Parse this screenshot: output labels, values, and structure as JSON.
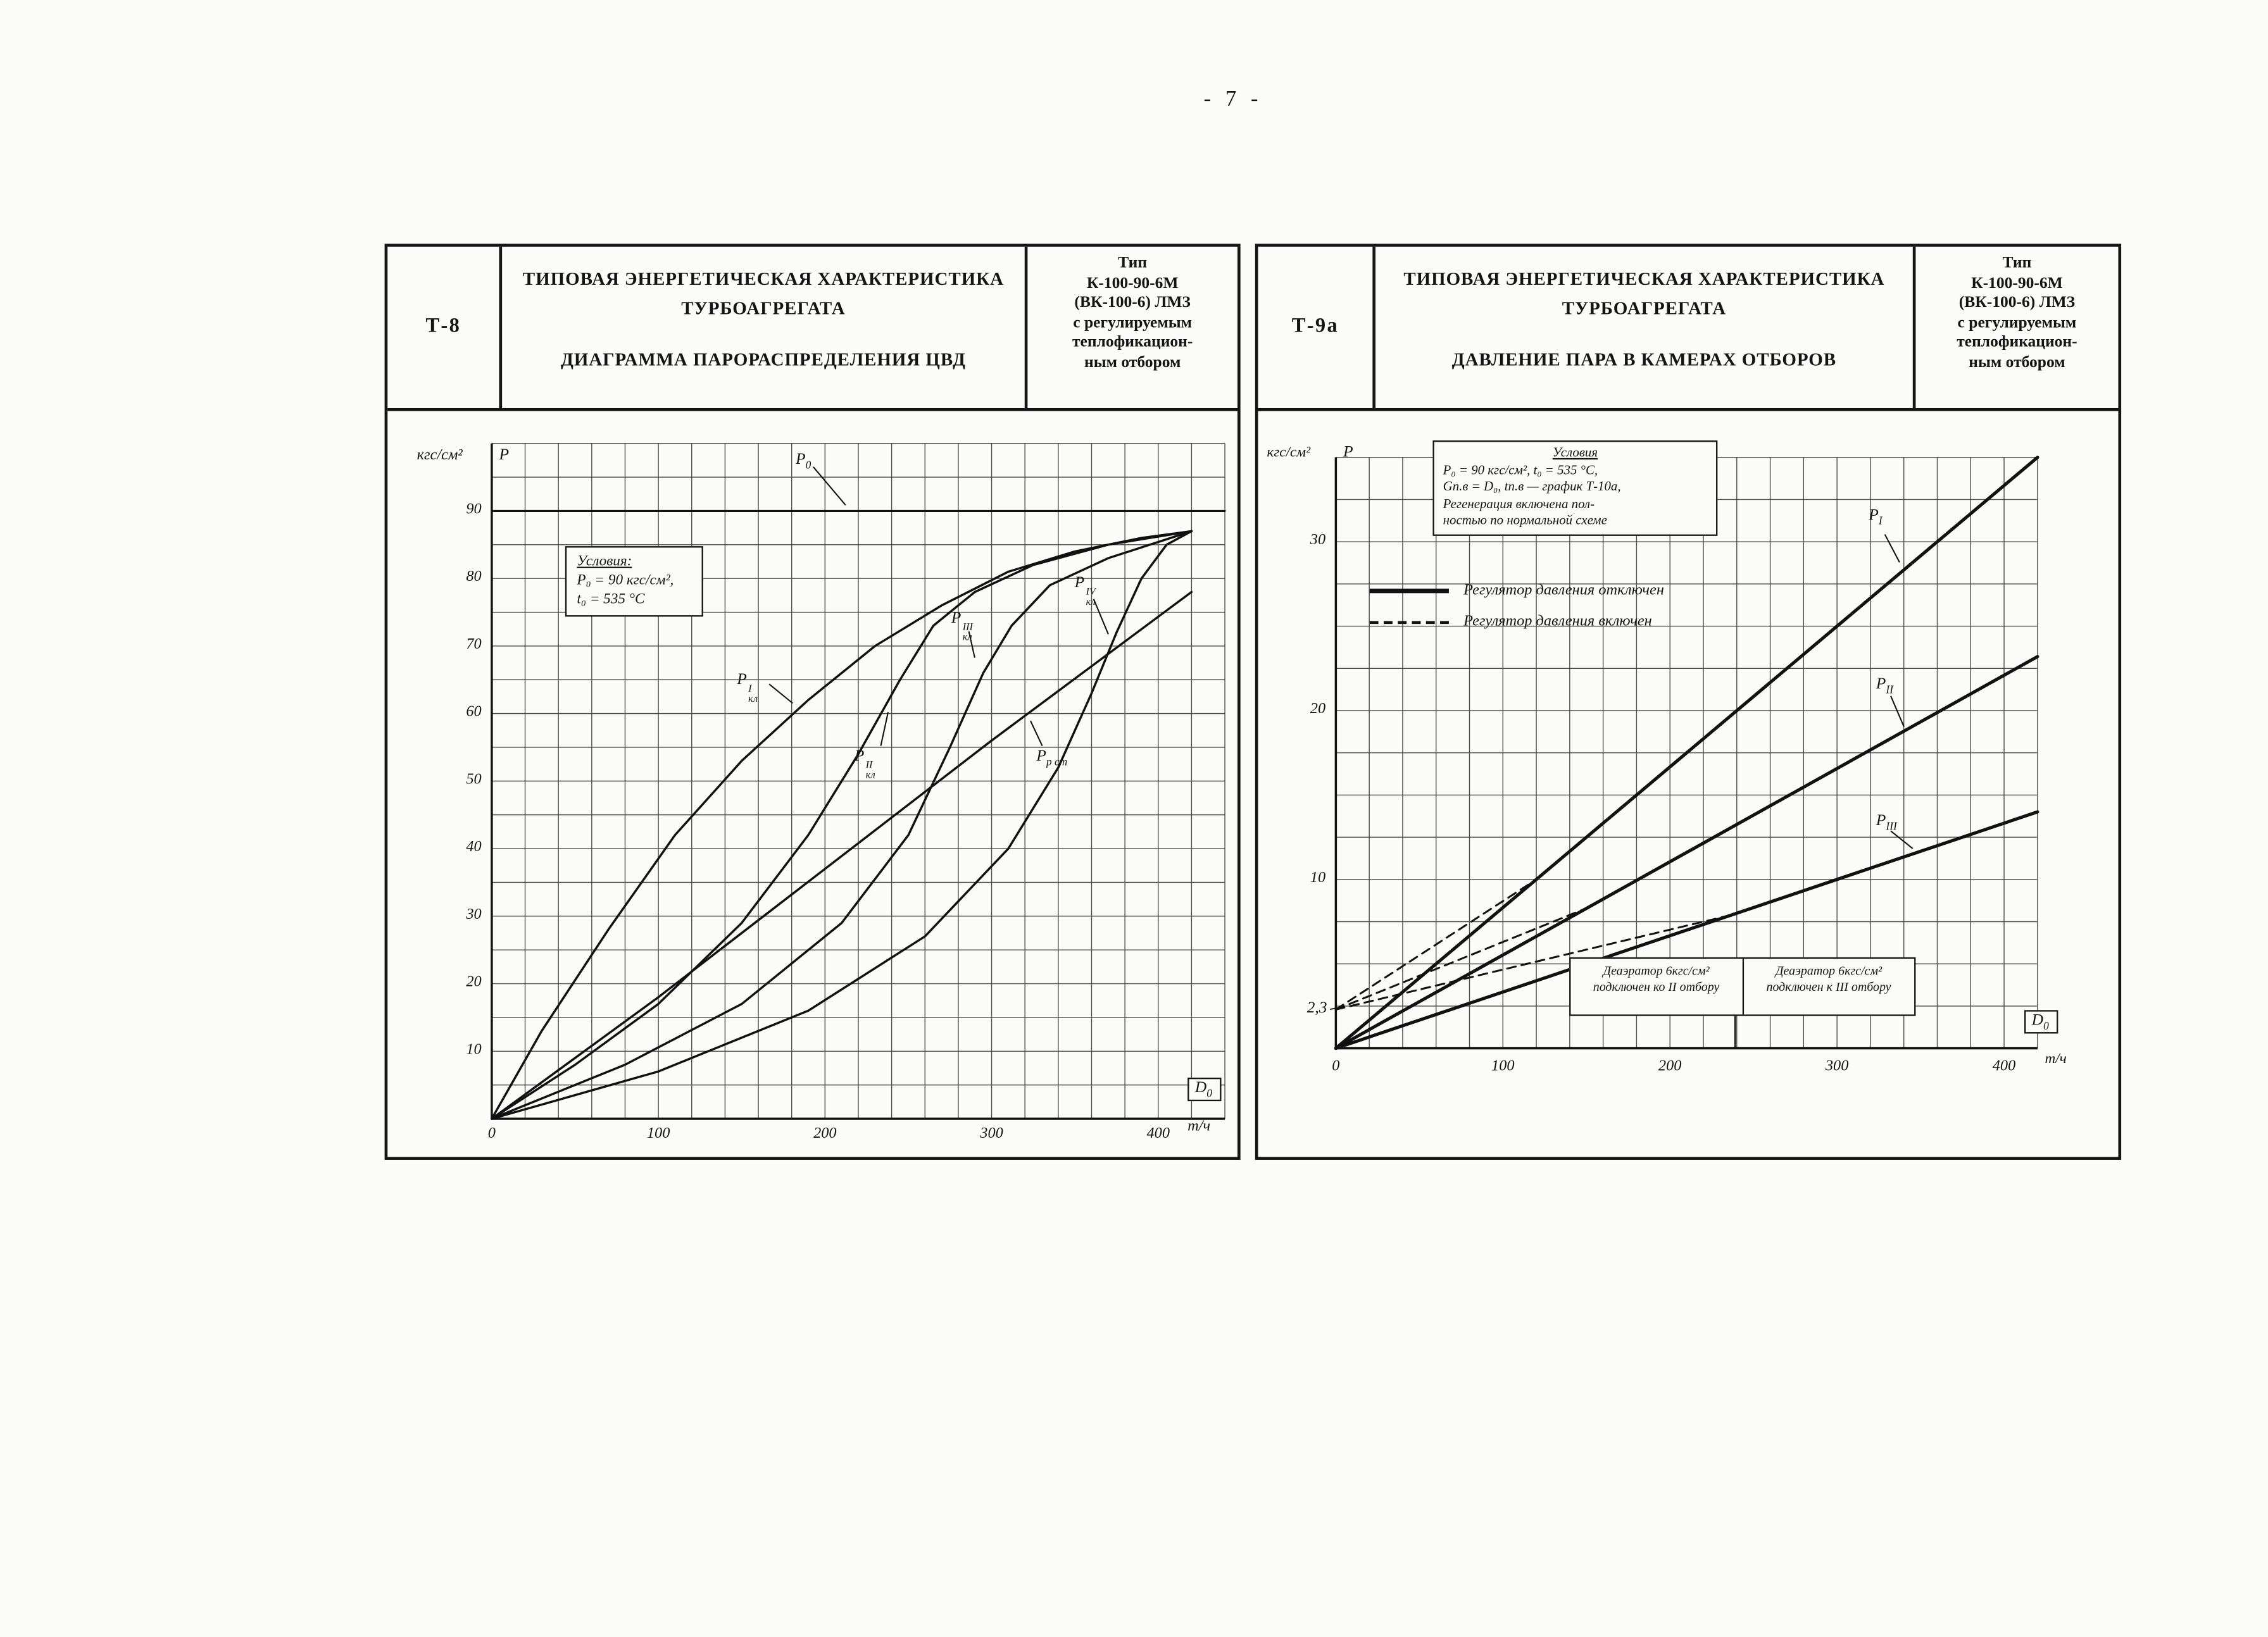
{
  "page": {
    "number": "- 7 -"
  },
  "panels": {
    "left": {
      "code": "Т-8",
      "title_line1": "ТИПОВАЯ ЭНЕРГЕТИЧЕСКАЯ ХАРАКТЕРИСТИКА",
      "title_line2": "ТУРБОАГРЕГАТА",
      "subtitle": "ДИАГРАММА ПАРОРАСПРЕДЕЛЕНИЯ ЦВД",
      "type_lines": [
        "Тип",
        "К-100-90-6М",
        "(ВК-100-6) ЛМЗ",
        "с регулируемым",
        "теплофикацион-",
        "ным отбором"
      ],
      "conditions": {
        "title": "Условия:",
        "line1": "P₀ = 90 кгс/см²,",
        "line2": "t₀ = 535 °С"
      }
    },
    "right": {
      "code": "Т-9а",
      "title_line1": "ТИПОВАЯ ЭНЕРГЕТИЧЕСКАЯ ХАРАКТЕРИСТИКА",
      "title_line2": "ТУРБОАГРЕГАТА",
      "subtitle": "ДАВЛЕНИЕ ПАРА В КАМЕРАХ ОТБОРОВ",
      "type_lines": [
        "Тип",
        "К-100-90-6М",
        "(ВК-100-6) ЛМЗ",
        "с регулируемым",
        "теплофикацион-",
        "ным отбором"
      ],
      "conditions": {
        "title": "Условия",
        "line1": "P₀ = 90 кгс/см², t₀ = 535 °С,",
        "line2": "Gп.в = D₀, tп.в — график Т-10а,",
        "line3": "Регенерация включена пол-",
        "line4": "ностью по нормальной схеме"
      },
      "legend": {
        "off": "Регулятор давления отключен",
        "on": "Регулятор давления включен"
      },
      "deaerator": {
        "left_line1": "Деаэратор 6кгс/см²",
        "left_line2": "подключен ко II отбору",
        "right_line1": "Деаэратор 6кгс/см²",
        "right_line2": "подключен к III отбору"
      }
    }
  },
  "chart_data": [
    {
      "id": 0,
      "type": "line",
      "title": "Диаграмма парораспределения ЦВД",
      "xlabel": "D₀, т/ч",
      "ylabel": "P, кгс/см²",
      "xlim": [
        0,
        440
      ],
      "ylim": [
        0,
        100
      ],
      "grid": true,
      "series": [
        {
          "name": "P0",
          "points": [
            [
              0,
              90
            ],
            [
              440,
              90
            ]
          ],
          "width": 1.3
        },
        {
          "name": "P_kl_I",
          "points": [
            [
              0,
              0
            ],
            [
              30,
              13
            ],
            [
              70,
              28
            ],
            [
              110,
              42
            ],
            [
              150,
              53
            ],
            [
              190,
              62
            ],
            [
              230,
              70
            ],
            [
              270,
              76
            ],
            [
              310,
              81
            ],
            [
              350,
              84
            ],
            [
              390,
              86
            ],
            [
              420,
              87
            ]
          ],
          "width": 1.5
        },
        {
          "name": "P_kl_II",
          "points": [
            [
              0,
              0
            ],
            [
              50,
              8
            ],
            [
              100,
              17
            ],
            [
              150,
              29
            ],
            [
              190,
              42
            ],
            [
              220,
              54
            ],
            [
              245,
              65
            ],
            [
              265,
              73
            ],
            [
              290,
              78
            ],
            [
              325,
              82
            ],
            [
              370,
              85
            ],
            [
              420,
              87
            ]
          ],
          "width": 1.5
        },
        {
          "name": "P_kl_III",
          "points": [
            [
              0,
              0
            ],
            [
              80,
              8
            ],
            [
              150,
              17
            ],
            [
              210,
              29
            ],
            [
              250,
              42
            ],
            [
              275,
              55
            ],
            [
              295,
              66
            ],
            [
              312,
              73
            ],
            [
              335,
              79
            ],
            [
              370,
              83
            ],
            [
              420,
              87
            ]
          ],
          "width": 1.5
        },
        {
          "name": "P_kl_IV",
          "points": [
            [
              0,
              0
            ],
            [
              100,
              7
            ],
            [
              190,
              16
            ],
            [
              260,
              27
            ],
            [
              310,
              40
            ],
            [
              340,
              52
            ],
            [
              360,
              63
            ],
            [
              375,
              72
            ],
            [
              390,
              80
            ],
            [
              405,
              85
            ],
            [
              420,
              87
            ]
          ],
          "width": 1.5
        },
        {
          "name": "P_rst",
          "points": [
            [
              0,
              0
            ],
            [
              100,
              18
            ],
            [
              200,
              37
            ],
            [
              300,
              56
            ],
            [
              360,
              67
            ],
            [
              420,
              78
            ]
          ],
          "width": 1.5
        }
      ],
      "render": {
        "plot": {
          "x0": 71,
          "y0": 482,
          "sx": 1.135,
          "sy": 4.6
        },
        "grid": {
          "xMax": 440,
          "yMax": 100,
          "xStep": 20,
          "yStep": 5,
          "color": "#4a4a4a",
          "lw": 0.6
        },
        "tickSize": 10.5,
        "xTickY": 488,
        "xTicks": [
          {
            "v": 0,
            "label": "0"
          },
          {
            "v": 100,
            "label": "100"
          },
          {
            "v": 200,
            "label": "200"
          },
          {
            "v": 300,
            "label": "300"
          },
          {
            "v": 400,
            "label": "400"
          }
        ],
        "yTicks": [
          {
            "v": 10,
            "label": "10"
          },
          {
            "v": 20,
            "label": "20"
          },
          {
            "v": 30,
            "label": "30"
          },
          {
            "v": 40,
            "label": "40"
          },
          {
            "v": 50,
            "label": "50"
          },
          {
            "v": 60,
            "label": "60"
          },
          {
            "v": 70,
            "label": "70"
          },
          {
            "v": 80,
            "label": "80"
          },
          {
            "v": 90,
            "label": "90"
          }
        ],
        "lines": [
          [
            71,
            22,
            71,
            482,
            1.5
          ],
          [
            71,
            482,
            570.4,
            482,
            1.5
          ],
          [
            290,
            38,
            312,
            64,
            0.9
          ],
          [
            260,
            186,
            276,
            199,
            0.9
          ],
          [
            336,
            228,
            341,
            205,
            0.9
          ],
          [
            396,
            150,
            400,
            168,
            0.9
          ],
          [
            481,
            128,
            491,
            152,
            0.9
          ],
          [
            446,
            228,
            438,
            211,
            0.9
          ]
        ],
        "labels": [
          {
            "name": "y-unit-label",
            "text": "кгс/см²",
            "x": 20,
            "y": 26,
            "size": 10.5
          },
          {
            "name": "y-axis-symbol",
            "main": "Р",
            "x": 76,
            "y": 25
          },
          {
            "name": "curve-label-p0",
            "main": "P",
            "sub": "0",
            "x": 278,
            "y": 28
          },
          {
            "name": "curve-label-pkl-1",
            "main": "P",
            "sup": "I",
            "sub": "кл",
            "x": 238,
            "y": 178
          },
          {
            "name": "curve-label-pkl-2",
            "main": "P",
            "sup": "II",
            "sub": "кл",
            "x": 318,
            "y": 230
          },
          {
            "name": "curve-label-pkl-3",
            "main": "P",
            "sup": "III",
            "sub": "кл",
            "x": 384,
            "y": 136
          },
          {
            "name": "curve-label-pkl-4",
            "main": "P",
            "sup": "IV",
            "sub": "кл",
            "x": 468,
            "y": 112
          },
          {
            "name": "curve-label-prst",
            "main": "P",
            "sub": "р ст",
            "x": 442,
            "y": 230
          },
          {
            "name": "x-unit-label",
            "text": "т/ч",
            "x": 545,
            "y": 483,
            "size": 10.5
          },
          {
            "name": "x-axis-symbol",
            "main": "D",
            "sub": "0",
            "x": 545,
            "y": 454,
            "boxed": true
          }
        ]
      }
    },
    {
      "id": 1,
      "type": "line",
      "title": "Давление пара в камерах отборов",
      "xlabel": "D₀, т/ч",
      "ylabel": "P, кгс/см²",
      "xlim": [
        0,
        420
      ],
      "ylim": [
        0,
        35
      ],
      "grid": true,
      "series": [
        {
          "name": "P_I_regulator_off",
          "points": [
            [
              0,
              0
            ],
            [
              420,
              35
            ]
          ],
          "width": 2.2
        },
        {
          "name": "P_II_regulator_off",
          "points": [
            [
              0,
              0
            ],
            [
              420,
              23.2
            ]
          ],
          "width": 2.2
        },
        {
          "name": "P_III_regulator_off",
          "points": [
            [
              0,
              0
            ],
            [
              420,
              14
            ]
          ],
          "width": 2.2
        },
        {
          "name": "P_I_regulator_on",
          "points": [
            [
              0,
              2.3
            ],
            [
              120,
              10
            ]
          ],
          "width": 1.3,
          "dash": "6,4"
        },
        {
          "name": "P_II_regulator_on",
          "points": [
            [
              0,
              2.3
            ],
            [
              150,
              8.3
            ]
          ],
          "width": 1.3,
          "dash": "6,4"
        },
        {
          "name": "P_III_regulator_on",
          "points": [
            [
              0,
              2.3
            ],
            [
              235,
              7.85
            ]
          ],
          "width": 1.3,
          "dash": "6,4"
        }
      ],
      "render": {
        "plot": {
          "x0": 53,
          "y0": 434,
          "sx": 1.138,
          "sy": 11.5
        },
        "grid": {
          "xMax": 420,
          "yMax": 35,
          "xStep": 20,
          "yStep": 2.5,
          "color": "#4a4a4a",
          "lw": 0.6
        },
        "tickSize": 10.5,
        "xTickY": 442,
        "xTicks": [
          {
            "v": 0,
            "label": "0"
          },
          {
            "v": 100,
            "label": "100"
          },
          {
            "v": 200,
            "label": "200"
          },
          {
            "v": 300,
            "label": "300"
          },
          {
            "v": 400,
            "label": "400"
          }
        ],
        "yTicks": [
          {
            "v": 10,
            "label": "10"
          },
          {
            "v": 20,
            "label": "20"
          },
          {
            "v": 30,
            "label": "30"
          }
        ],
        "lines": [
          [
            53,
            31.5,
            53,
            434,
            1.5
          ],
          [
            53,
            434,
            531,
            434,
            1.5
          ],
          [
            427,
            84,
            437,
            103,
            0.9
          ],
          [
            431,
            194,
            440,
            215,
            0.9
          ],
          [
            431,
            286,
            446,
            298,
            0.9
          ],
          [
            325,
            412,
            325,
            434,
            1.1
          ],
          [
            49,
            407.5,
            56,
            406,
            0.8
          ]
        ],
        "labels": [
          {
            "name": "y-unit-label",
            "text": "кгс/см²",
            "x": 6,
            "y": 24,
            "size": 10
          },
          {
            "name": "y-axis-symbol",
            "main": "Р",
            "x": 58,
            "y": 23
          },
          {
            "name": "curve-label-p-1",
            "main": "P",
            "sub": "I",
            "x": 416,
            "y": 66
          },
          {
            "name": "curve-label-p-2",
            "main": "P",
            "sub": "II",
            "x": 421,
            "y": 181
          },
          {
            "name": "curve-label-p-3",
            "main": "P",
            "sub": "III",
            "x": 421,
            "y": 274
          },
          {
            "name": "deaerator-pressure-mark",
            "text": "2,3",
            "x": 47,
            "y": 407,
            "anchor": "end",
            "vcenter": true
          },
          {
            "name": "x-unit-label",
            "text": "т/ч",
            "x": 536,
            "y": 437,
            "size": 10
          },
          {
            "name": "x-axis-symbol",
            "main": "D",
            "sub": "0",
            "x": 522,
            "y": 408,
            "boxed": true
          }
        ]
      }
    }
  ]
}
